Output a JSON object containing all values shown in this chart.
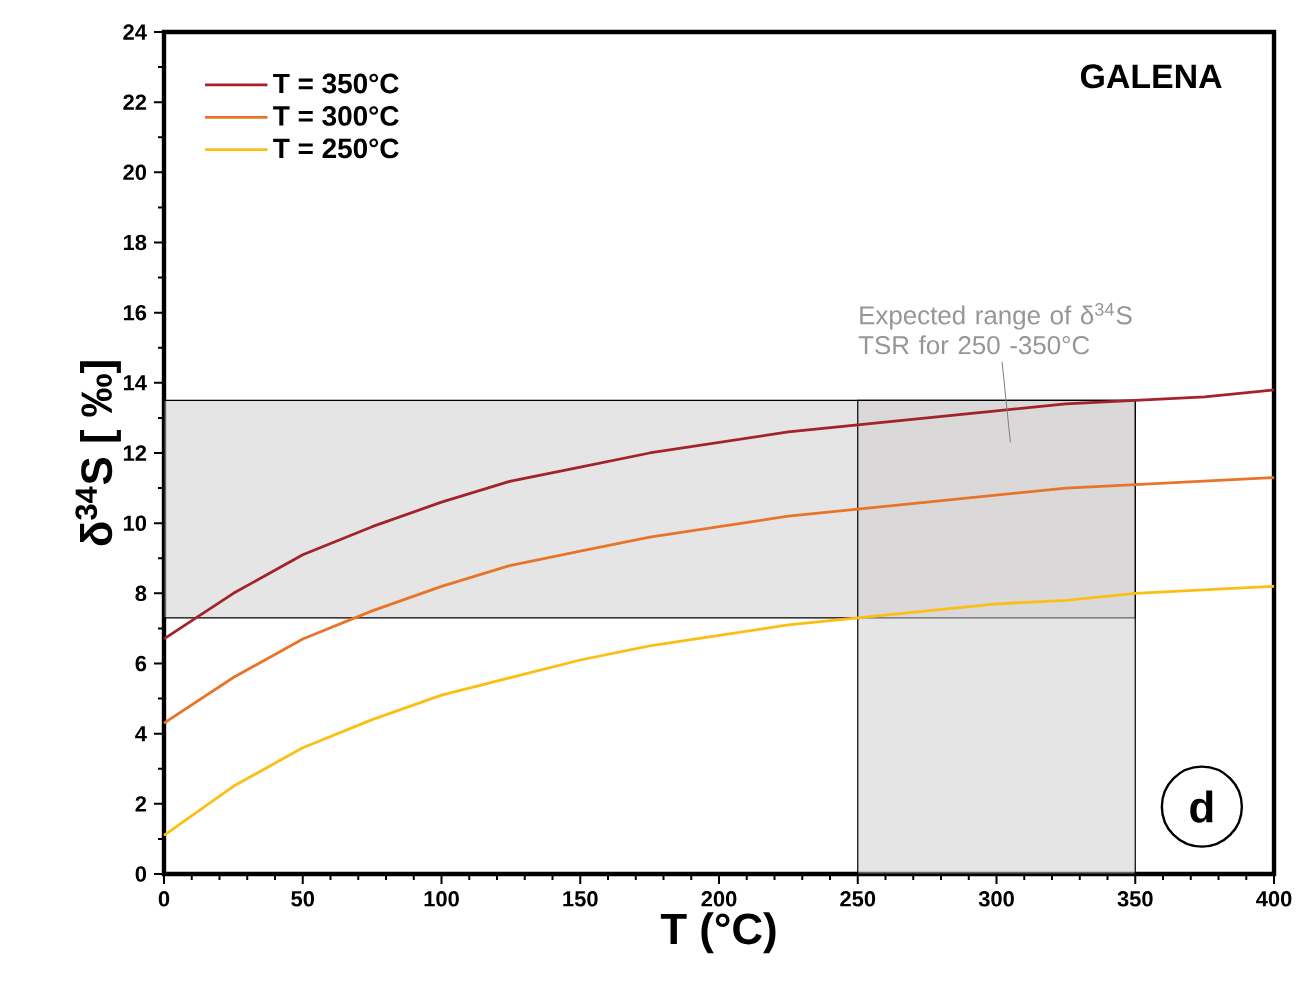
{
  "chart_data": {
    "type": "line",
    "title": "GALENA",
    "xlabel": "T (°C)",
    "ylabel": "δ$^{34}$S [ ‰]",
    "x": [
      0,
      25,
      50,
      75,
      100,
      125,
      150,
      175,
      200,
      225,
      250,
      275,
      300,
      325,
      350,
      375,
      400
    ],
    "series": [
      {
        "name": "T = 350°C",
        "color": "#a3232a",
        "values": [
          6.7,
          8.0,
          9.1,
          9.9,
          10.6,
          11.2,
          11.6,
          12.0,
          12.3,
          12.6,
          12.8,
          13.0,
          13.2,
          13.4,
          13.5,
          13.6,
          13.8
        ]
      },
      {
        "name": "T = 300°C",
        "color": "#e8742a",
        "values": [
          4.3,
          5.6,
          6.7,
          7.5,
          8.2,
          8.8,
          9.2,
          9.6,
          9.9,
          10.2,
          10.4,
          10.6,
          10.8,
          11.0,
          11.1,
          11.2,
          11.3
        ]
      },
      {
        "name": "T = 250°C",
        "color": "#fbbf14",
        "values": [
          1.1,
          2.5,
          3.6,
          4.4,
          5.1,
          5.6,
          6.1,
          6.5,
          6.8,
          7.1,
          7.3,
          7.5,
          7.7,
          7.8,
          8.0,
          8.1,
          8.2
        ]
      }
    ],
    "xlim": [
      0,
      400
    ],
    "ylim": [
      0,
      24
    ],
    "xticks": [
      0,
      50,
      100,
      150,
      200,
      250,
      300,
      350,
      400
    ],
    "yticks": [
      0,
      2,
      4,
      6,
      8,
      10,
      12,
      14,
      16,
      18,
      20,
      22,
      24
    ],
    "bands": [
      {
        "axis": "y",
        "from": 7.3,
        "to": 13.5,
        "color": "#e6e5e4"
      },
      {
        "axis": "x",
        "from": 250,
        "to": 350,
        "color": "#e6e5e4"
      }
    ],
    "annotations": [
      "Expected range of δ$^{34}$S TSR for 250 -350°C",
      "d"
    ],
    "legend": "top left",
    "grid": false,
    "marker": "none",
    "line_style": "solid"
  }
}
